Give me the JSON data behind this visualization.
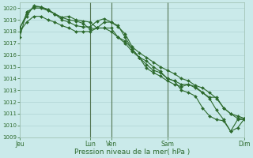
{
  "bg_color": "#caeaea",
  "grid_color": "#b0d4d4",
  "line_color": "#2d6a2d",
  "vline_color": "#557755",
  "title": "Pression niveau de la mer( hPa )",
  "ylim": [
    1009,
    1020.5
  ],
  "yticks": [
    1009,
    1010,
    1011,
    1012,
    1013,
    1014,
    1015,
    1016,
    1017,
    1018,
    1019,
    1020
  ],
  "xtick_labels": [
    "Jeu",
    "Lun",
    "Ven",
    "Sam",
    "Dim"
  ],
  "xtick_positions": [
    0,
    10,
    13,
    21,
    32
  ],
  "vline_positions": [
    10,
    13,
    21
  ],
  "xlim": [
    0,
    32
  ],
  "lines": [
    [
      1017.5,
      1019.7,
      1020.0,
      1020.0,
      1019.8,
      1019.5,
      1019.2,
      1019.0,
      1018.9,
      1018.7,
      1018.2,
      1018.3,
      1018.8,
      1018.8,
      1018.4,
      1017.8,
      1016.7,
      1016.2,
      1015.8,
      1015.4,
      1015.0,
      1014.7,
      1014.4,
      1014.0,
      1013.8,
      1013.4,
      1013.2,
      1012.8,
      1012.3,
      1011.5,
      1011.0,
      1010.6,
      1010.6
    ],
    [
      1018.3,
      1019.5,
      1020.1,
      1020.1,
      1019.9,
      1019.5,
      1019.0,
      1018.8,
      1018.5,
      1018.4,
      1018.4,
      1018.9,
      1019.1,
      1018.8,
      1018.5,
      1017.5,
      1016.5,
      1015.8,
      1014.9,
      1014.5,
      1014.2,
      1013.8,
      1013.5,
      1013.3,
      1013.5,
      1013.2,
      1012.8,
      1012.3,
      1011.3,
      1010.5,
      1009.5,
      1010.5,
      1010.5
    ],
    [
      1018.3,
      1019.3,
      1020.2,
      1020.1,
      1019.8,
      1019.5,
      1019.2,
      1019.3,
      1019.0,
      1018.9,
      1018.8,
      1018.3,
      1018.3,
      1018.3,
      1017.5,
      1017.0,
      1016.3,
      1015.8,
      1015.5,
      1015.0,
      1014.6,
      1014.0,
      1013.8,
      1013.5,
      1013.5,
      1013.3,
      1012.8,
      1012.4,
      1012.4,
      1011.5,
      1011.0,
      1010.8,
      1010.6
    ],
    [
      1018.0,
      1018.8,
      1019.3,
      1019.3,
      1019.0,
      1018.8,
      1018.5,
      1018.3,
      1018.0,
      1018.0,
      1018.0,
      1018.3,
      1018.3,
      1018.0,
      1017.5,
      1017.2,
      1016.5,
      1015.8,
      1015.2,
      1014.7,
      1014.5,
      1014.0,
      1013.8,
      1013.0,
      1012.8,
      1012.5,
      1011.5,
      1010.8,
      1010.5,
      1010.4,
      1009.5,
      1009.8,
      1010.6
    ]
  ],
  "marker": "D",
  "marker_size": 2.0,
  "linewidth": 0.8
}
